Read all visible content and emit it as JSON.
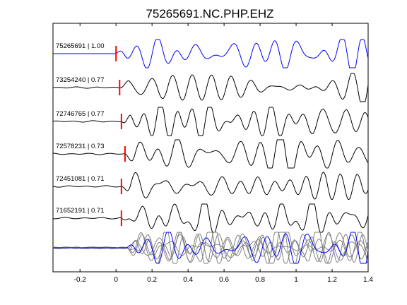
{
  "chart_data": {
    "type": "line",
    "title": "75265691.NC.PHP.EHZ",
    "xlabel": "",
    "ylabel": "",
    "xlim": [
      -0.35,
      1.4
    ],
    "x_ticks": [
      -0.2,
      0,
      0.2,
      0.4,
      0.6,
      0.8,
      1,
      1.2,
      1.4
    ],
    "x_tick_labels": [
      "-0.2",
      "0",
      "0.2",
      "0.4",
      "0.6",
      "0.8",
      "1",
      "1.2",
      "1.4"
    ],
    "pick_marker_color": "#ff0000",
    "template_color": "#0000ff",
    "trace_color": "#000000",
    "overlay_color": "#808080",
    "traces": [
      {
        "event_id": "75265691",
        "cc": "1.00",
        "label": "75265691 | 1.00",
        "pick_time": 0.0,
        "color": "#0000ff",
        "seed": 1
      },
      {
        "event_id": "73254240",
        "cc": "0.77",
        "label": "73254240 | 0.77",
        "pick_time": 0.02,
        "color": "#000000",
        "seed": 2
      },
      {
        "event_id": "72746765",
        "cc": "0.77",
        "label": "72746765 | 0.77",
        "pick_time": 0.03,
        "color": "#000000",
        "seed": 3
      },
      {
        "event_id": "72578231",
        "cc": "0.73",
        "label": "72578231 | 0.73",
        "pick_time": 0.05,
        "color": "#000000",
        "seed": 4
      },
      {
        "event_id": "72451081",
        "cc": "0.71",
        "label": "72451081 | 0.71",
        "pick_time": 0.03,
        "color": "#000000",
        "seed": 5
      },
      {
        "event_id": "71652191",
        "cc": "0.71",
        "label": "71652191 | 0.71",
        "pick_time": 0.03,
        "color": "#000000",
        "seed": 6
      }
    ],
    "overlay": {
      "has_stack": true,
      "grid": false,
      "legend": "none"
    }
  }
}
